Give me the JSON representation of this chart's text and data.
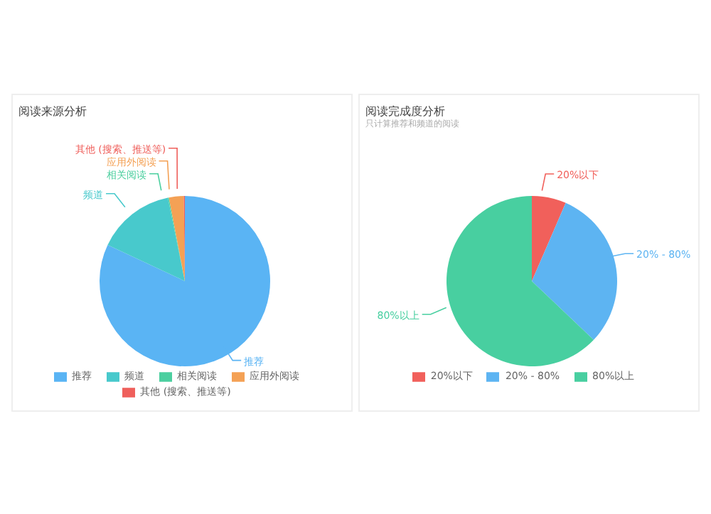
{
  "chart_data": [
    {
      "type": "pie",
      "title": "阅读来源分析",
      "categories": [
        "推荐",
        "频道",
        "相关阅读",
        "应用外阅读",
        "其他 (搜索、推送等)"
      ],
      "values": [
        82,
        14.8,
        0.2,
        2.8,
        0.2
      ],
      "colors": [
        "#5ab4f4",
        "#48c9cc",
        "#4ccf9f",
        "#f4a155",
        "#ef5f5b"
      ],
      "legend": "bottom"
    },
    {
      "type": "pie",
      "title": "阅读完成度分析",
      "subtitle": "只计算推荐和频道的阅读",
      "categories": [
        "20%以下",
        "20% - 80%",
        "80%以上"
      ],
      "values": [
        6.5,
        30.6,
        62.9
      ],
      "colors": [
        "#f1605b",
        "#5db4f2",
        "#48cfa0"
      ],
      "legend": "bottom"
    }
  ]
}
